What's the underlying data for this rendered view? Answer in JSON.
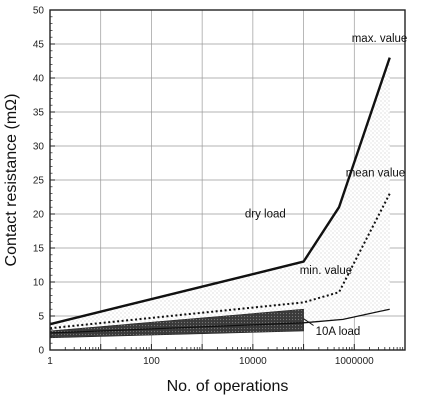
{
  "chart_data": {
    "type": "line",
    "xlabel": "No. of operations",
    "ylabel": "Contact resistance (mΩ)",
    "x_scale": "log",
    "xlim": [
      1,
      10000000
    ],
    "ylim": [
      0,
      50
    ],
    "grid": true,
    "x_ticks": [
      {
        "value": 1,
        "label": "1"
      },
      {
        "value": 100,
        "label": "100"
      },
      {
        "value": 10000,
        "label": "10000"
      },
      {
        "value": 1000000,
        "label": "1000000"
      }
    ],
    "y_ticks": [
      0,
      5,
      10,
      15,
      20,
      25,
      30,
      35,
      40,
      45,
      50
    ],
    "series": [
      {
        "name": "max. value",
        "style": "solid",
        "points": [
          [
            1,
            3.8
          ],
          [
            100000,
            13
          ],
          [
            500000,
            21
          ],
          [
            5000000,
            43
          ]
        ]
      },
      {
        "name": "mean value",
        "style": "dotted",
        "points": [
          [
            1,
            3.2
          ],
          [
            100000,
            7
          ],
          [
            500000,
            8.5
          ],
          [
            5000000,
            23
          ]
        ]
      },
      {
        "name": "min. value",
        "style": "solid",
        "points": [
          [
            1,
            2.5
          ],
          [
            100000,
            4
          ],
          [
            600000,
            4.5
          ],
          [
            5000000,
            6
          ]
        ]
      }
    ],
    "shaded_band": {
      "label": "10A load",
      "x_end": 100000,
      "upper": [
        [
          1,
          2.8
        ],
        [
          100000,
          6
        ]
      ],
      "lower": [
        [
          1,
          1.8
        ],
        [
          100000,
          2.8
        ]
      ]
    },
    "annotations": [
      {
        "text": "max. value"
      },
      {
        "text": "mean value"
      },
      {
        "text": "min. value"
      },
      {
        "text": "dry load"
      },
      {
        "text": "10A load"
      }
    ]
  }
}
